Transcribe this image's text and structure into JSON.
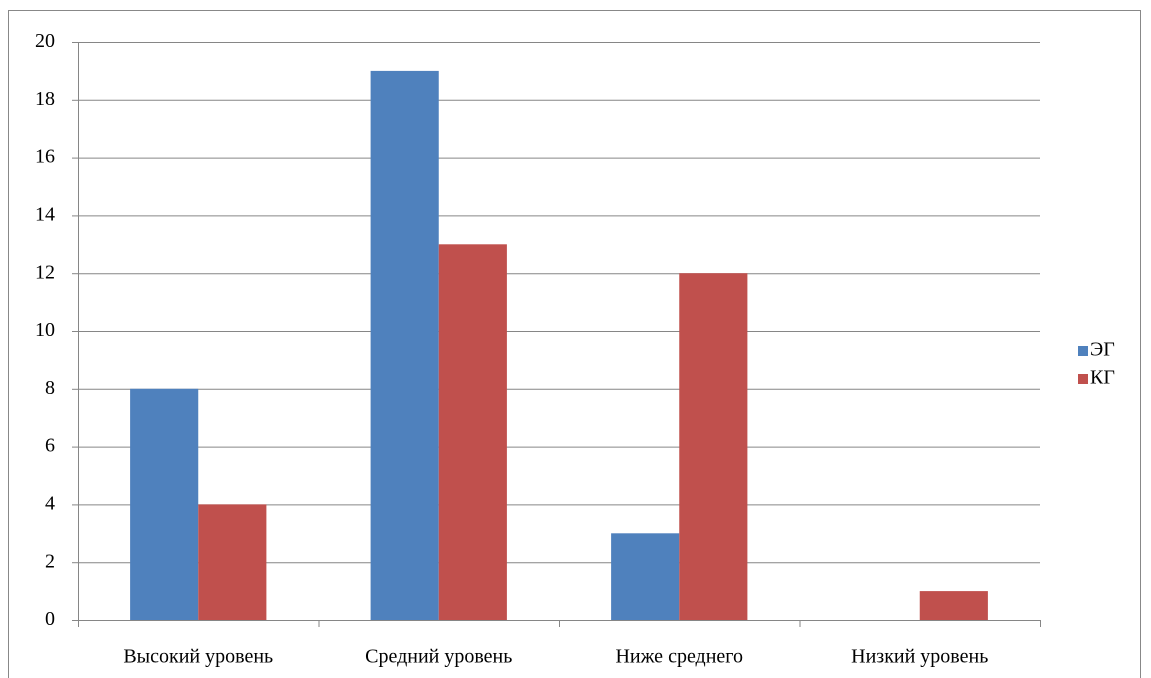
{
  "chart_data": {
    "type": "bar",
    "categories": [
      "Высокий уровень",
      "Средний уровень",
      "Ниже среднего",
      "Низкий уровень"
    ],
    "series": [
      {
        "name": "ЭГ",
        "color": "#4f81bd",
        "values": [
          8,
          19,
          3,
          0
        ]
      },
      {
        "name": "КГ",
        "color": "#c0504d",
        "values": [
          4,
          13,
          12,
          1
        ]
      }
    ],
    "ylim": [
      0,
      20
    ],
    "yticks": [
      0,
      2,
      4,
      6,
      8,
      10,
      12,
      14,
      16,
      18,
      20
    ],
    "grid": true,
    "legend": "right"
  }
}
